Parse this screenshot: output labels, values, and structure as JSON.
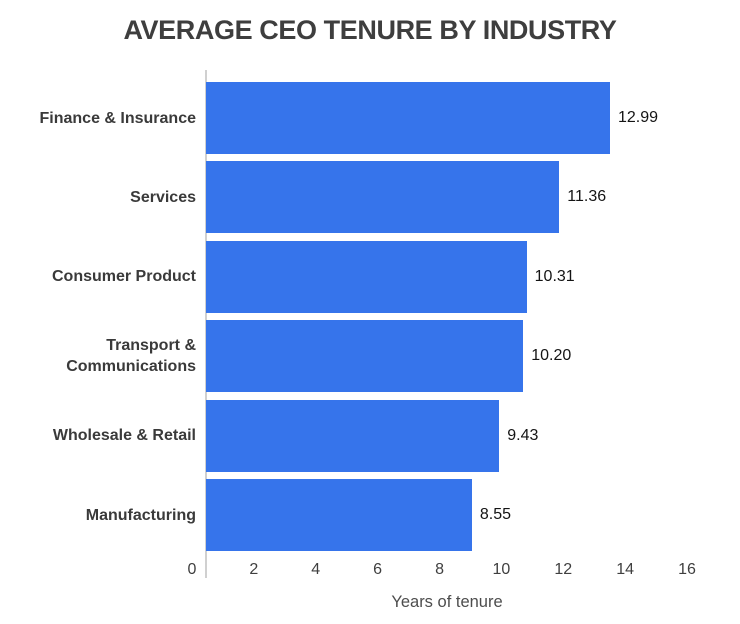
{
  "chart_data": {
    "type": "bar",
    "orientation": "horizontal",
    "title": "AVERAGE CEO TENURE BY INDUSTRY",
    "xlabel": "Years of tenure",
    "ylabel": "",
    "categories": [
      "Finance & Insurance",
      "Services",
      "Consumer Product",
      "Transport & Communications",
      "Wholesale & Retail",
      "Manufacturing"
    ],
    "values": [
      12.99,
      11.36,
      10.31,
      10.2,
      9.43,
      8.55
    ],
    "value_labels": [
      "12.99",
      "11.36",
      "10.31",
      "10.20",
      "9.43",
      "8.55"
    ],
    "xlim": [
      0,
      16
    ],
    "x_ticks": [
      "0",
      "2",
      "4",
      "6",
      "8",
      "10",
      "12",
      "14",
      "16"
    ],
    "grid": false,
    "legend": "none",
    "colors": {
      "background": "#ffffff",
      "bar": "#3674eb",
      "title": "#3e3e3e",
      "label": "#3a3a3a",
      "value": "#141414",
      "tick": "#3f3f3f",
      "xlabel": "#4d4d4d",
      "axis_line": "#d0d0d0"
    }
  }
}
